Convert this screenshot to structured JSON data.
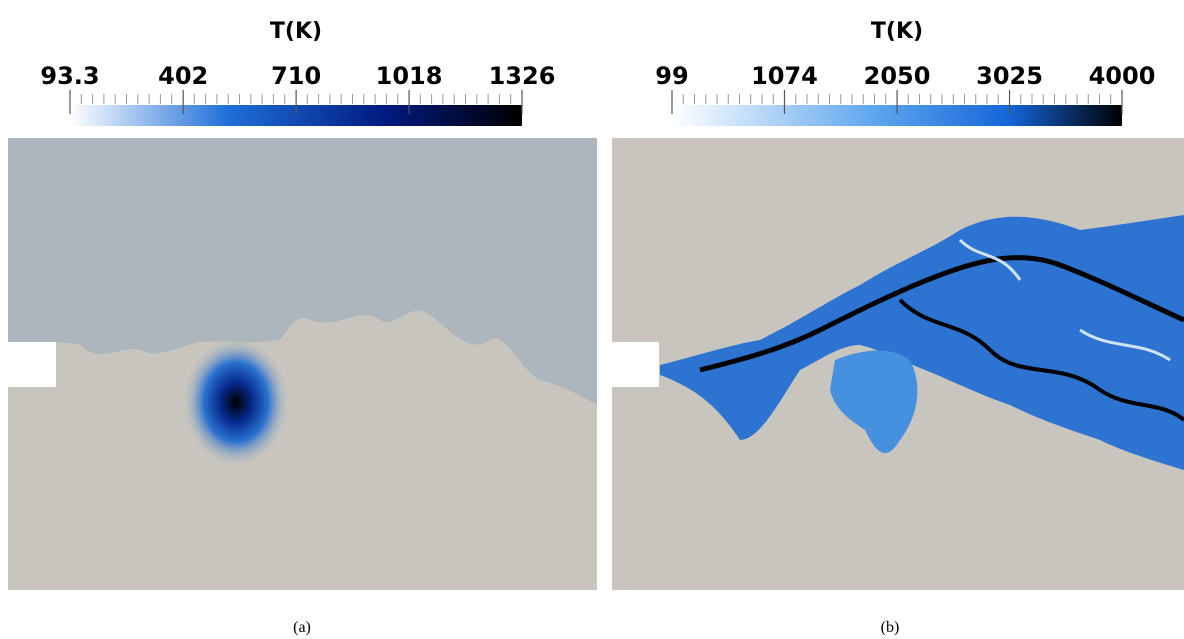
{
  "panels": [
    {
      "colorbar": {
        "title": "T(K)",
        "range": [
          93.3,
          1326
        ],
        "ticks": [
          93.3,
          402,
          710,
          1018,
          1326
        ]
      },
      "caption": "(a)"
    },
    {
      "colorbar": {
        "title": "T(K)",
        "range": [
          99,
          4000
        ],
        "ticks": [
          99,
          1074,
          2050,
          3025,
          4000
        ]
      },
      "caption": "(b)"
    }
  ]
}
